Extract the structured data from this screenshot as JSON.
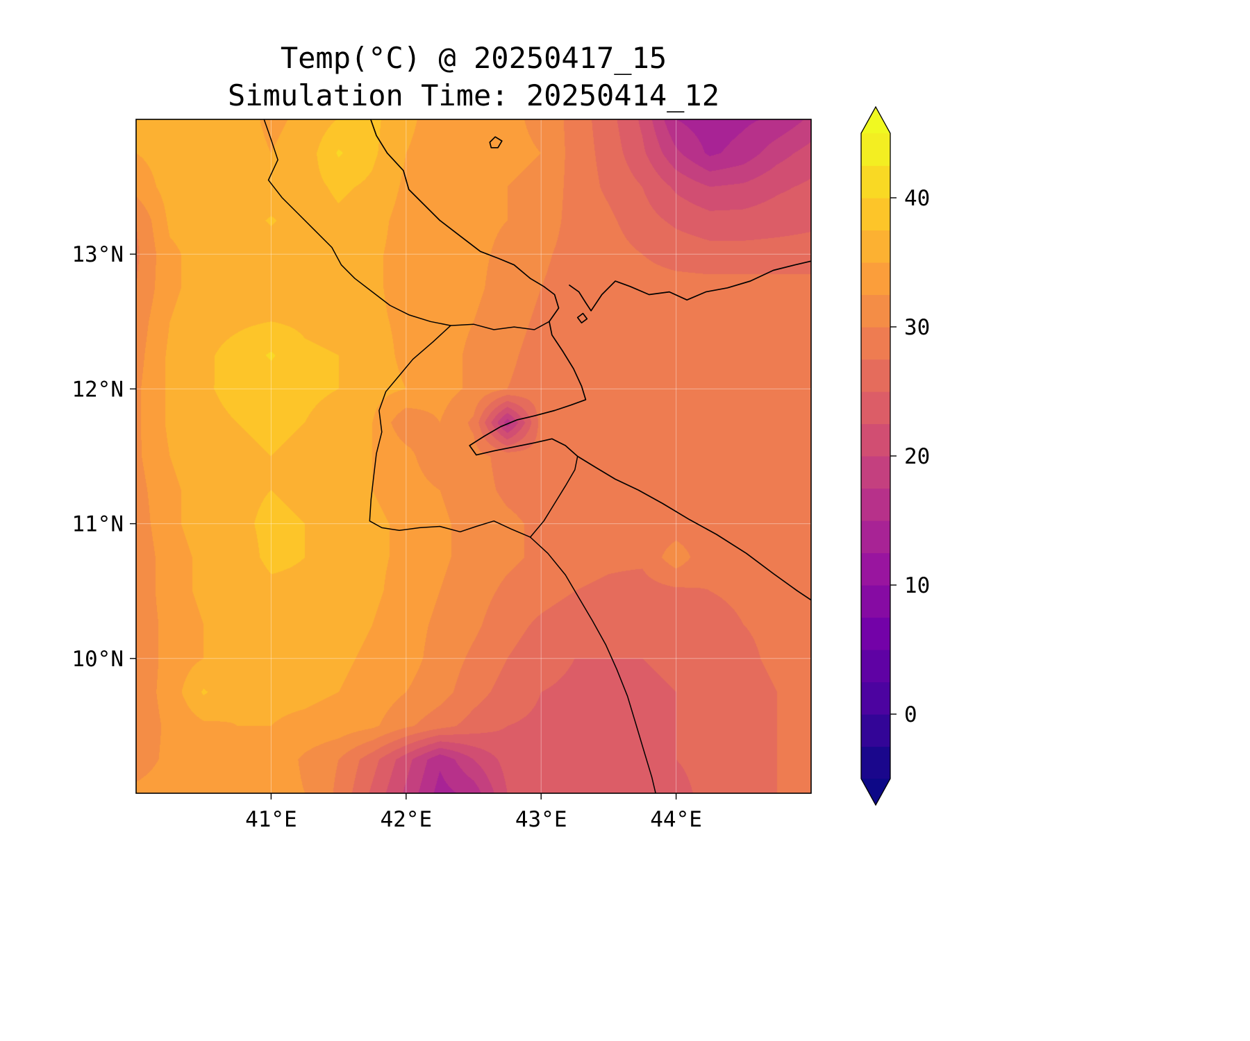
{
  "chart_data": {
    "type": "heatmap",
    "title": "Temp(°C) @ 20250417_15",
    "subtitle": "Simulation Time: 20250414_12",
    "variable": "2m Temperature",
    "units": "°C",
    "lon_range": [
      40.0,
      45.0
    ],
    "lat_range": [
      9.0,
      14.0
    ],
    "x_ticks": [
      {
        "value": 41,
        "label": "41°E"
      },
      {
        "value": 42,
        "label": "42°E"
      },
      {
        "value": 43,
        "label": "43°E"
      },
      {
        "value": 44,
        "label": "44°E"
      }
    ],
    "y_ticks": [
      {
        "value": 13,
        "label": "13°N"
      },
      {
        "value": 12,
        "label": "12°N"
      },
      {
        "value": 11,
        "label": "11°N"
      },
      {
        "value": 10,
        "label": "10°N"
      }
    ],
    "gridlines": {
      "lons": [
        41,
        42,
        43,
        44
      ],
      "lats": [
        10,
        11,
        12,
        13
      ]
    },
    "colorbar": {
      "orientation": "vertical",
      "vmin": -5,
      "vmax": 45,
      "band_step": 2.5,
      "extend": "both",
      "ticks": [
        {
          "value": 40,
          "label": "40"
        },
        {
          "value": 30,
          "label": "30"
        },
        {
          "value": 20,
          "label": "20"
        },
        {
          "value": 10,
          "label": "10"
        },
        {
          "value": 0,
          "label": "0"
        }
      ],
      "colormap_name": "plasma",
      "colormap_anchors": [
        "#0d0887",
        "#46039f",
        "#7201a8",
        "#9c179e",
        "#bd3786",
        "#d8576b",
        "#ed7953",
        "#fb9f3a",
        "#fdca26",
        "#f0f921"
      ]
    },
    "field": {
      "units": "°C",
      "lon_start": 40.0,
      "lon_step": 0.25,
      "ncols": 21,
      "lat_start": 14.0,
      "lat_step": -0.25,
      "nrows": 21,
      "values": [
        [
          35.5,
          36,
          36.5,
          36,
          34.5,
          35.5,
          37.6,
          38.2,
          35.5,
          34,
          33.5,
          33,
          32,
          29,
          26,
          22,
          15,
          13.5,
          14.5,
          15.5,
          18
        ],
        [
          35,
          36,
          36.5,
          36,
          35,
          36,
          40.3,
          38,
          35,
          34,
          33.5,
          33,
          32.5,
          29,
          26.5,
          23,
          18,
          14.5,
          16,
          19,
          21
        ],
        [
          33.5,
          36,
          36.5,
          36.5,
          35.5,
          36.5,
          38,
          37,
          34.5,
          33.5,
          33,
          32.5,
          32,
          29,
          27,
          25,
          22,
          20,
          20.5,
          22,
          23
        ],
        [
          30,
          35.5,
          36,
          36,
          37.8,
          36,
          37,
          36,
          34,
          33.5,
          33,
          32.5,
          31.5,
          29,
          28,
          26,
          24.5,
          23.5,
          23.5,
          24,
          24.5
        ],
        [
          29.5,
          34.5,
          36,
          36,
          36,
          36,
          36.5,
          35.5,
          34,
          33.5,
          33,
          32,
          30.5,
          29,
          28.5,
          27.5,
          26.5,
          26,
          26,
          26,
          26
        ],
        [
          30,
          34.5,
          36,
          36.5,
          36.5,
          36.5,
          36.5,
          35.5,
          34,
          33.5,
          33,
          31.5,
          30,
          28.8,
          28.5,
          28.5,
          28.5,
          28.5,
          28.5,
          28.5,
          28.5
        ],
        [
          31,
          35,
          36.5,
          37,
          37.5,
          37,
          36.5,
          35.5,
          34.5,
          33.5,
          32.5,
          31,
          29.5,
          28.5,
          28.5,
          28.5,
          28.5,
          28.5,
          28.5,
          28.5,
          28.5
        ],
        [
          31.5,
          35.5,
          37,
          38.5,
          40.3,
          38,
          37.5,
          36,
          34.5,
          33.5,
          32,
          30.5,
          29,
          28.5,
          28.5,
          28.5,
          28.5,
          28.5,
          28.5,
          28.5,
          28.5
        ],
        [
          32,
          35.5,
          37,
          38.6,
          38.5,
          38,
          37.5,
          36,
          35,
          33.5,
          32,
          30,
          28.8,
          28.5,
          28.5,
          28.5,
          28.5,
          28.5,
          28.5,
          28.5,
          28.5
        ],
        [
          32,
          35.5,
          36.5,
          37.5,
          38,
          37.5,
          36.5,
          35,
          30.5,
          32.5,
          29.5,
          16,
          28.5,
          28.5,
          28.5,
          28.5,
          28.5,
          28.5,
          28.5,
          28.5,
          28.5
        ],
        [
          32,
          35,
          36.5,
          37,
          37.5,
          37,
          36.5,
          35,
          33.5,
          30,
          31,
          29,
          28.5,
          28.5,
          28.5,
          28.5,
          28.5,
          28.5,
          28.5,
          28.5,
          28.5
        ],
        [
          31.5,
          34.5,
          36,
          37,
          37.5,
          37,
          36,
          35,
          34,
          32.5,
          31,
          29.5,
          29,
          28.5,
          28.5,
          28.5,
          28.5,
          28.5,
          28.5,
          28.5,
          28.5
        ],
        [
          31,
          34.5,
          36,
          37,
          38,
          37.5,
          36.5,
          35.5,
          34.5,
          33,
          31.5,
          30.5,
          29.5,
          29,
          28.5,
          28.5,
          28.5,
          28.5,
          28.5,
          28.5,
          28.5
        ],
        [
          30.5,
          34,
          35.5,
          36.5,
          38,
          37.5,
          36.5,
          35.5,
          34.5,
          33,
          31.5,
          30.5,
          29.5,
          28.5,
          28,
          28,
          31.5,
          28,
          28,
          28,
          28
        ],
        [
          30.5,
          34,
          35.5,
          36,
          37,
          37,
          36.5,
          35.5,
          34,
          32.5,
          31,
          29.5,
          28.5,
          27.5,
          27,
          26.5,
          27,
          27.5,
          28,
          28,
          28
        ],
        [
          30.5,
          33.5,
          35,
          35.5,
          36.5,
          36.5,
          36,
          35,
          33.5,
          32,
          30.5,
          28.5,
          27,
          26,
          25.5,
          25.5,
          26,
          26.5,
          27.5,
          28,
          28.5
        ],
        [
          30.5,
          33.5,
          35,
          35.5,
          36,
          36,
          35.5,
          34.5,
          33.5,
          31.5,
          29.5,
          27.5,
          26,
          25,
          25,
          25,
          25.5,
          26,
          27,
          28,
          28.5
        ],
        [
          31,
          33.5,
          37.8,
          35.5,
          35.5,
          35.5,
          35,
          34,
          32.5,
          31,
          28.5,
          26.5,
          25,
          24.5,
          24.5,
          24.5,
          25,
          25.5,
          26.5,
          27.5,
          28
        ],
        [
          31,
          33,
          34.5,
          35,
          35,
          34.5,
          34,
          33,
          30.5,
          28.5,
          26.5,
          25,
          24.5,
          24,
          24,
          24.5,
          25,
          25.5,
          26.5,
          27.5,
          28
        ],
        [
          31.5,
          33,
          34,
          34.5,
          34.5,
          32,
          30,
          26,
          21,
          15.5,
          20,
          23.5,
          24,
          24,
          24,
          24.5,
          25,
          25.5,
          26.5,
          27.5,
          28
        ],
        [
          33,
          33.5,
          34,
          34,
          34,
          32.5,
          29.5,
          24.5,
          19.5,
          14,
          16,
          22.5,
          23.5,
          23.5,
          23.5,
          24,
          24.5,
          25.5,
          26.5,
          27.5,
          28
        ]
      ]
    },
    "coastlines": [
      [
        [
          41.72,
          14.05
        ],
        [
          41.78,
          13.88
        ],
        [
          41.86,
          13.75
        ],
        [
          41.98,
          13.62
        ],
        [
          42.02,
          13.48
        ],
        [
          42.12,
          13.38
        ],
        [
          42.25,
          13.25
        ],
        [
          42.42,
          13.12
        ],
        [
          42.55,
          13.02
        ],
        [
          42.68,
          12.97
        ],
        [
          42.8,
          12.92
        ],
        [
          42.92,
          12.82
        ],
        [
          43.02,
          12.76
        ],
        [
          43.1,
          12.7
        ],
        [
          43.13,
          12.6
        ],
        [
          43.06,
          12.5
        ],
        [
          43.08,
          12.4
        ],
        [
          43.16,
          12.28
        ],
        [
          43.24,
          12.15
        ],
        [
          43.3,
          12.02
        ],
        [
          43.33,
          11.92
        ],
        [
          43.22,
          11.88
        ],
        [
          43.1,
          11.84
        ],
        [
          42.95,
          11.8
        ],
        [
          42.82,
          11.77
        ],
        [
          42.7,
          11.72
        ],
        [
          42.58,
          11.65
        ],
        [
          42.47,
          11.58
        ],
        [
          42.52,
          11.51
        ],
        [
          42.65,
          11.54
        ],
        [
          42.8,
          11.57
        ],
        [
          42.95,
          11.6
        ],
        [
          43.08,
          11.63
        ],
        [
          43.18,
          11.58
        ],
        [
          43.27,
          11.5
        ],
        [
          43.4,
          11.42
        ],
        [
          43.55,
          11.33
        ],
        [
          43.72,
          11.25
        ],
        [
          43.9,
          11.15
        ],
        [
          44.1,
          11.03
        ],
        [
          44.3,
          10.92
        ],
        [
          44.52,
          10.78
        ],
        [
          44.72,
          10.63
        ],
        [
          44.9,
          10.5
        ],
        [
          45.05,
          10.4
        ]
      ],
      [
        [
          45.05,
          12.96
        ],
        [
          44.88,
          12.92
        ],
        [
          44.72,
          12.88
        ],
        [
          44.55,
          12.8
        ],
        [
          44.38,
          12.75
        ],
        [
          44.22,
          12.72
        ],
        [
          44.08,
          12.66
        ],
        [
          43.95,
          12.72
        ],
        [
          43.8,
          12.7
        ],
        [
          43.66,
          12.76
        ],
        [
          43.55,
          12.8
        ],
        [
          43.45,
          12.7
        ],
        [
          43.37,
          12.58
        ],
        [
          43.33,
          12.64
        ],
        [
          43.28,
          12.72
        ],
        [
          43.21,
          12.77
        ]
      ],
      [
        [
          42.62,
          13.83
        ],
        [
          42.66,
          13.87
        ],
        [
          42.71,
          13.84
        ],
        [
          42.68,
          13.79
        ],
        [
          42.63,
          13.79
        ],
        [
          42.62,
          13.83
        ]
      ],
      [
        [
          43.27,
          12.53
        ],
        [
          43.31,
          12.56
        ],
        [
          43.34,
          12.52
        ],
        [
          43.3,
          12.49
        ],
        [
          43.27,
          12.53
        ]
      ]
    ],
    "borders": [
      [
        [
          40.93,
          14.05
        ],
        [
          41.0,
          13.85
        ],
        [
          41.05,
          13.7
        ],
        [
          40.98,
          13.55
        ],
        [
          41.08,
          13.42
        ],
        [
          41.2,
          13.3
        ],
        [
          41.32,
          13.18
        ],
        [
          41.45,
          13.05
        ],
        [
          41.52,
          12.92
        ],
        [
          41.62,
          12.82
        ],
        [
          41.75,
          12.72
        ],
        [
          41.88,
          12.62
        ],
        [
          42.02,
          12.55
        ],
        [
          42.18,
          12.5
        ],
        [
          42.33,
          12.47
        ]
      ],
      [
        [
          42.33,
          12.47
        ],
        [
          42.5,
          12.48
        ],
        [
          42.65,
          12.44
        ],
        [
          42.8,
          12.46
        ],
        [
          42.95,
          12.44
        ],
        [
          43.06,
          12.5
        ]
      ],
      [
        [
          42.33,
          12.47
        ],
        [
          42.2,
          12.35
        ],
        [
          42.05,
          12.22
        ],
        [
          41.95,
          12.1
        ],
        [
          41.85,
          11.98
        ],
        [
          41.8,
          11.84
        ],
        [
          41.82,
          11.68
        ],
        [
          41.78,
          11.52
        ],
        [
          41.76,
          11.35
        ],
        [
          41.74,
          11.18
        ],
        [
          41.73,
          11.02
        ],
        [
          41.82,
          10.97
        ],
        [
          41.95,
          10.95
        ],
        [
          42.1,
          10.97
        ],
        [
          42.25,
          10.98
        ],
        [
          42.4,
          10.94
        ],
        [
          42.52,
          10.98
        ],
        [
          42.65,
          11.02
        ],
        [
          42.78,
          10.96
        ],
        [
          42.92,
          10.9
        ]
      ],
      [
        [
          42.92,
          10.9
        ],
        [
          43.02,
          11.02
        ],
        [
          43.1,
          11.15
        ],
        [
          43.18,
          11.28
        ],
        [
          43.25,
          11.4
        ],
        [
          43.27,
          11.5
        ]
      ],
      [
        [
          42.92,
          10.9
        ],
        [
          43.05,
          10.78
        ],
        [
          43.18,
          10.62
        ],
        [
          43.28,
          10.45
        ],
        [
          43.38,
          10.28
        ],
        [
          43.48,
          10.1
        ],
        [
          43.56,
          9.92
        ],
        [
          43.64,
          9.72
        ],
        [
          43.7,
          9.52
        ],
        [
          43.76,
          9.32
        ],
        [
          43.82,
          9.12
        ],
        [
          43.86,
          8.95
        ]
      ]
    ]
  }
}
